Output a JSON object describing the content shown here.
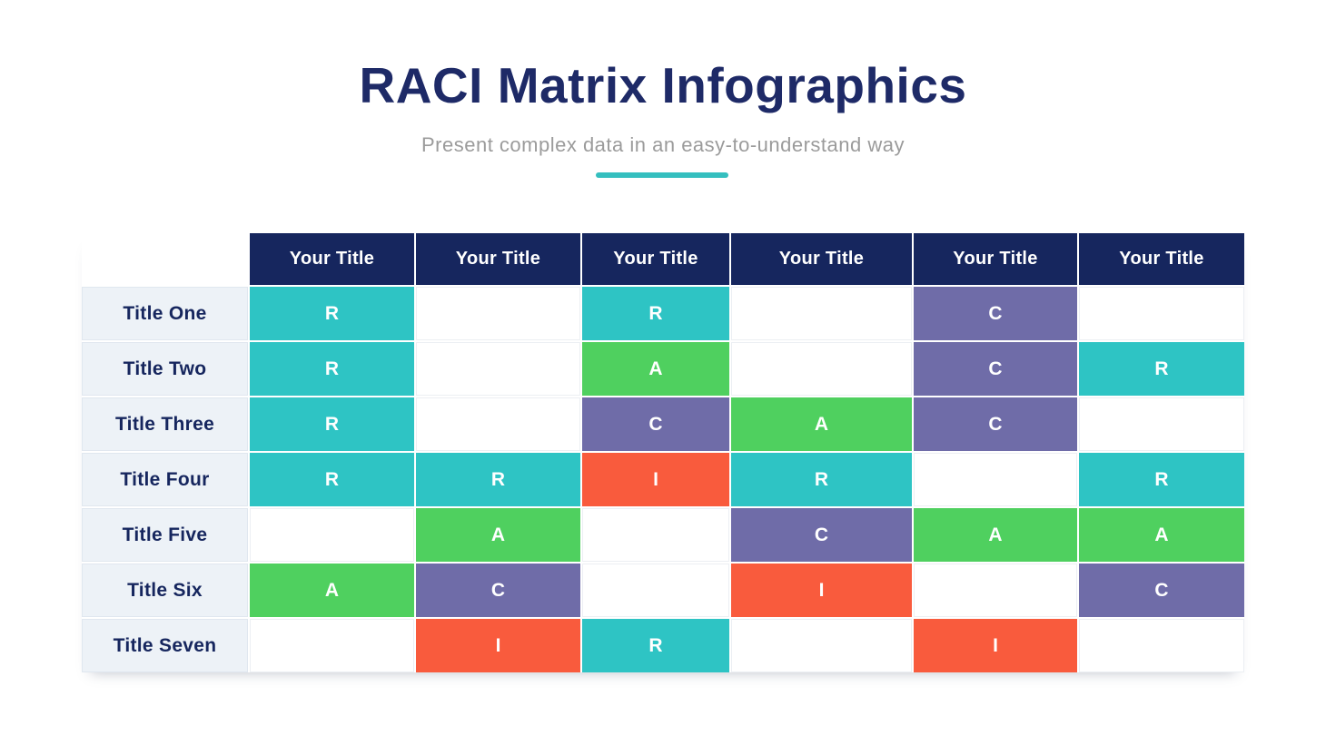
{
  "page": {
    "title": "RACI Matrix Infographics",
    "subtitle": "Present complex data in an easy-to-understand way"
  },
  "colors": {
    "title_navy": "#1E2A67",
    "header_navy": "#16265E",
    "subtitle_gray": "#9B9B9B",
    "divider_teal": "#35BFBF",
    "row_label_bg": "#EDF2F7",
    "responsible_teal": "#2EC4C4",
    "accountable_green": "#4FD05F",
    "consulted_purple": "#6F6CA8",
    "informed_orange": "#F95B3D"
  },
  "chart_data": {
    "type": "table",
    "title": "RACI Matrix Infographics",
    "subtitle": "Present complex data in an easy-to-understand way",
    "column_headers": [
      "Your Title",
      "Your Title",
      "Your Title",
      "Your Title",
      "Your Title",
      "Your Title"
    ],
    "row_headers": [
      "Title One",
      "Title Two",
      "Title Three",
      "Title Four",
      "Title Five",
      "Title Six",
      "Title Seven"
    ],
    "cells": [
      [
        "R",
        "",
        "R",
        "",
        "C",
        ""
      ],
      [
        "R",
        "",
        "A",
        "",
        "C",
        "R"
      ],
      [
        "R",
        "",
        "C",
        "A",
        "C",
        ""
      ],
      [
        "R",
        "R",
        "I",
        "R",
        "",
        "R"
      ],
      [
        "",
        "A",
        "",
        "C",
        "A",
        "A"
      ],
      [
        "A",
        "C",
        "",
        "I",
        "",
        "C"
      ],
      [
        "",
        "I",
        "R",
        "",
        "I",
        ""
      ]
    ],
    "cell_colors": {
      "R": "#2EC4C4",
      "A": "#4FD05F",
      "C": "#6F6CA8",
      "I": "#F95B3D"
    },
    "layout": {
      "legend": "none",
      "grid": "on"
    }
  }
}
